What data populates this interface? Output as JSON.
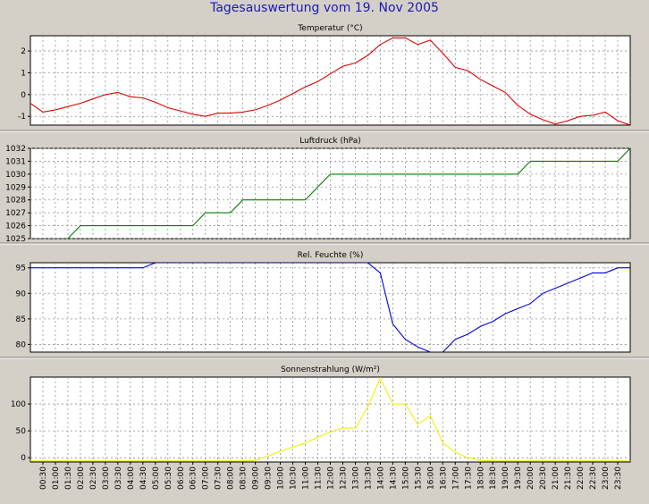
{
  "title": "Tagesauswertung vom 19. Nov 2005",
  "time_labels": [
    "00:30",
    "01:00",
    "01:30",
    "02:00",
    "02:30",
    "03:00",
    "03:30",
    "04:00",
    "04:30",
    "05:00",
    "05:30",
    "06:00",
    "06:30",
    "07:00",
    "07:30",
    "08:00",
    "08:30",
    "09:00",
    "09:30",
    "10:00",
    "10:30",
    "11:00",
    "11:30",
    "12:00",
    "12:30",
    "13:00",
    "13:30",
    "14:00",
    "14:30",
    "15:00",
    "15:30",
    "16:00",
    "16:30",
    "17:00",
    "17:30",
    "18:00",
    "18:30",
    "19:00",
    "19:30",
    "20:00",
    "20:30",
    "21:00",
    "21:30",
    "22:00",
    "22:30",
    "23:00",
    "23:30"
  ],
  "chart_data": [
    {
      "type": "line",
      "title": "Temperatur (°C)",
      "ylim": [
        -1.4,
        2.7
      ],
      "yticks": [
        -1,
        0,
        1,
        2
      ],
      "grid": true,
      "color": "#e00000",
      "x": [
        "00:00",
        "00:30",
        "01:00",
        "01:30",
        "02:00",
        "02:30",
        "03:00",
        "03:30",
        "04:00",
        "04:30",
        "05:00",
        "05:30",
        "06:00",
        "06:30",
        "07:00",
        "07:30",
        "08:00",
        "08:30",
        "09:00",
        "09:30",
        "10:00",
        "10:30",
        "11:00",
        "11:30",
        "12:00",
        "12:30",
        "13:00",
        "13:30",
        "14:00",
        "14:30",
        "15:00",
        "15:30",
        "16:00",
        "16:30",
        "17:00",
        "17:30",
        "18:00",
        "18:30",
        "19:00",
        "19:30",
        "20:00",
        "20:30",
        "21:00",
        "21:30",
        "22:00",
        "22:30",
        "23:00",
        "23:30",
        "24:00"
      ],
      "values": [
        -0.4,
        -0.8,
        -0.7,
        -0.55,
        -0.4,
        -0.2,
        0.0,
        0.1,
        -0.1,
        -0.15,
        -0.35,
        -0.6,
        -0.75,
        -0.9,
        -1.0,
        -0.85,
        -0.85,
        -0.8,
        -0.7,
        -0.5,
        -0.25,
        0.05,
        0.35,
        0.6,
        0.95,
        1.3,
        1.45,
        1.8,
        2.3,
        2.6,
        2.6,
        2.3,
        2.5,
        1.9,
        1.25,
        1.1,
        0.7,
        0.4,
        0.1,
        -0.5,
        -0.9,
        -1.15,
        -1.35,
        -1.2,
        -1.0,
        -0.95,
        -0.8,
        -1.2,
        -1.4
      ]
    },
    {
      "type": "line",
      "title": "Luftdruck (hPa)",
      "ylim": [
        1025,
        1032
      ],
      "yticks": [
        1025,
        1026,
        1027,
        1028,
        1029,
        1030,
        1031,
        1032
      ],
      "grid": true,
      "color": "#008000",
      "x": [
        "00:00",
        "00:30",
        "01:00",
        "01:30",
        "02:00",
        "02:30",
        "03:00",
        "03:30",
        "04:00",
        "04:30",
        "05:00",
        "05:30",
        "06:00",
        "06:30",
        "07:00",
        "07:30",
        "08:00",
        "08:30",
        "09:00",
        "09:30",
        "10:00",
        "10:30",
        "11:00",
        "11:30",
        "12:00",
        "12:30",
        "13:00",
        "13:30",
        "14:00",
        "14:30",
        "15:00",
        "15:30",
        "16:00",
        "16:30",
        "17:00",
        "17:30",
        "18:00",
        "18:30",
        "19:00",
        "19:30",
        "20:00",
        "20:30",
        "21:00",
        "21:30",
        "22:00",
        "22:30",
        "23:00",
        "23:30",
        "24:00"
      ],
      "values": [
        1024.4,
        1024.6,
        1024.8,
        1025,
        1026,
        1026,
        1026,
        1026,
        1026,
        1026,
        1026,
        1026,
        1026,
        1026,
        1027,
        1027,
        1027,
        1028,
        1028,
        1028,
        1028,
        1028,
        1028,
        1029,
        1030,
        1030,
        1030,
        1030,
        1030,
        1030,
        1030,
        1030,
        1030,
        1030,
        1030,
        1030,
        1030,
        1030,
        1030,
        1030,
        1031,
        1031,
        1031,
        1031,
        1031,
        1031,
        1031,
        1031,
        1032
      ]
    },
    {
      "type": "line",
      "title": "Rel. Feuchte (%)",
      "ylim": [
        78.5,
        96
      ],
      "yticks": [
        80,
        85,
        90,
        95
      ],
      "grid": true,
      "color": "#0000e0",
      "x": [
        "00:00",
        "00:30",
        "01:00",
        "01:30",
        "02:00",
        "02:30",
        "03:00",
        "03:30",
        "04:00",
        "04:30",
        "05:00",
        "05:30",
        "06:00",
        "06:30",
        "07:00",
        "07:30",
        "08:00",
        "08:30",
        "09:00",
        "09:30",
        "10:00",
        "10:30",
        "11:00",
        "11:30",
        "12:00",
        "12:30",
        "13:00",
        "13:30",
        "14:00",
        "14:30",
        "15:00",
        "15:30",
        "16:00",
        "16:30",
        "17:00",
        "17:30",
        "18:00",
        "18:30",
        "19:00",
        "19:30",
        "20:00",
        "20:30",
        "21:00",
        "21:30",
        "22:00",
        "22:30",
        "23:00",
        "23:30",
        "24:00"
      ],
      "values": [
        95,
        95,
        95,
        95,
        95,
        95,
        95,
        95,
        95,
        95,
        96,
        96,
        96,
        96,
        96,
        96,
        96,
        96,
        96,
        96,
        96,
        96,
        96,
        96,
        96,
        96,
        96,
        96,
        94,
        84,
        81,
        79.5,
        78.5,
        78.5,
        81,
        82,
        83.5,
        84.5,
        86,
        87,
        88,
        90,
        91,
        92,
        93,
        94,
        94,
        95,
        95
      ]
    },
    {
      "type": "line",
      "title": "Sonnenstrahlung (W/m²)",
      "ylim": [
        -8,
        150
      ],
      "yticks": [
        0,
        50,
        100
      ],
      "grid": true,
      "color": "#f0f000",
      "x": [
        "00:00",
        "00:30",
        "01:00",
        "01:30",
        "02:00",
        "02:30",
        "03:00",
        "03:30",
        "04:00",
        "04:30",
        "05:00",
        "05:30",
        "06:00",
        "06:30",
        "07:00",
        "07:30",
        "08:00",
        "08:30",
        "09:00",
        "09:30",
        "10:00",
        "10:30",
        "11:00",
        "11:30",
        "12:00",
        "12:30",
        "13:00",
        "13:30",
        "14:00",
        "14:30",
        "15:00",
        "15:30",
        "16:00",
        "16:30",
        "17:00",
        "17:30",
        "18:00",
        "18:30",
        "19:00",
        "19:30",
        "20:00",
        "20:30",
        "21:00",
        "21:30",
        "22:00",
        "22:30",
        "23:00",
        "23:30",
        "24:00"
      ],
      "values": [
        -6,
        -6,
        -6,
        -6,
        -6,
        -6,
        -6,
        -6,
        -6,
        -6,
        -6,
        -6,
        -6,
        -6,
        -6,
        -6,
        -6,
        -6,
        -5,
        3,
        12,
        20,
        27,
        38,
        48,
        55,
        55,
        95,
        148,
        100,
        100,
        62,
        78,
        28,
        10,
        0,
        -5,
        -6,
        -6,
        -6,
        -6,
        -6,
        -6,
        -6,
        -6,
        -6,
        -6,
        -6,
        -6
      ]
    }
  ]
}
